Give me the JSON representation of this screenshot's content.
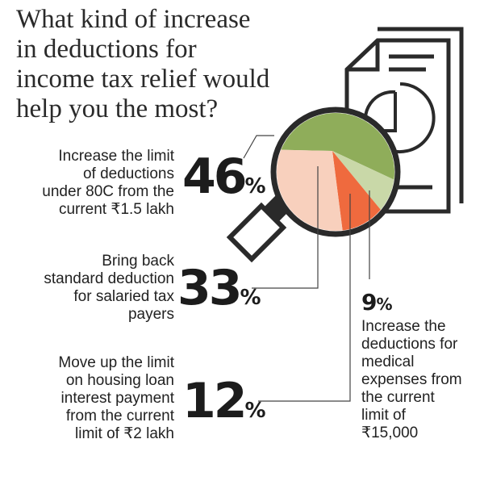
{
  "title_lines": [
    "What kind of increase",
    "in deductions for",
    "income tax relief would",
    "help you the most?"
  ],
  "chart_data": {
    "type": "pie",
    "title": "What kind of increase in deductions for income tax relief would help you the most?",
    "categories": [
      "Increase the limit of deductions under 80C from the current ₹1.5 lakh",
      "Bring back standard deduction for salaried tax payers",
      "Move up the limit on housing loan interest payment from the current limit of ₹2 lakh",
      "Increase the deductions for medical expenses from the current limit of ₹15,000"
    ],
    "values": [
      46,
      33,
      12,
      9
    ],
    "unit": "%",
    "colors": [
      "#8fad5a",
      "#f8d0bd",
      "#ef6a3e",
      "#c9d8a8"
    ],
    "items": [
      {
        "value": "46",
        "unit": "%",
        "label_lines": [
          "Increase the limit",
          "of deductions",
          "under 80C from the",
          "current ₹1.5 lakh"
        ]
      },
      {
        "value": "33",
        "unit": "%",
        "label_lines": [
          "Bring back",
          "standard deduction",
          "for salaried tax",
          "payers"
        ]
      },
      {
        "value": "12",
        "unit": "%",
        "label_lines": [
          "Move up the limit",
          "on housing loan",
          "interest payment",
          "from the current",
          "limit of ₹2 lakh"
        ]
      },
      {
        "value": "9",
        "unit": "%",
        "label_lines": [
          "Increase the",
          "deductions for",
          "medical",
          "expenses from",
          "the current",
          "limit of",
          "₹15,000"
        ]
      }
    ]
  },
  "icons": [
    "document-icon",
    "magnifying-glass-icon"
  ]
}
